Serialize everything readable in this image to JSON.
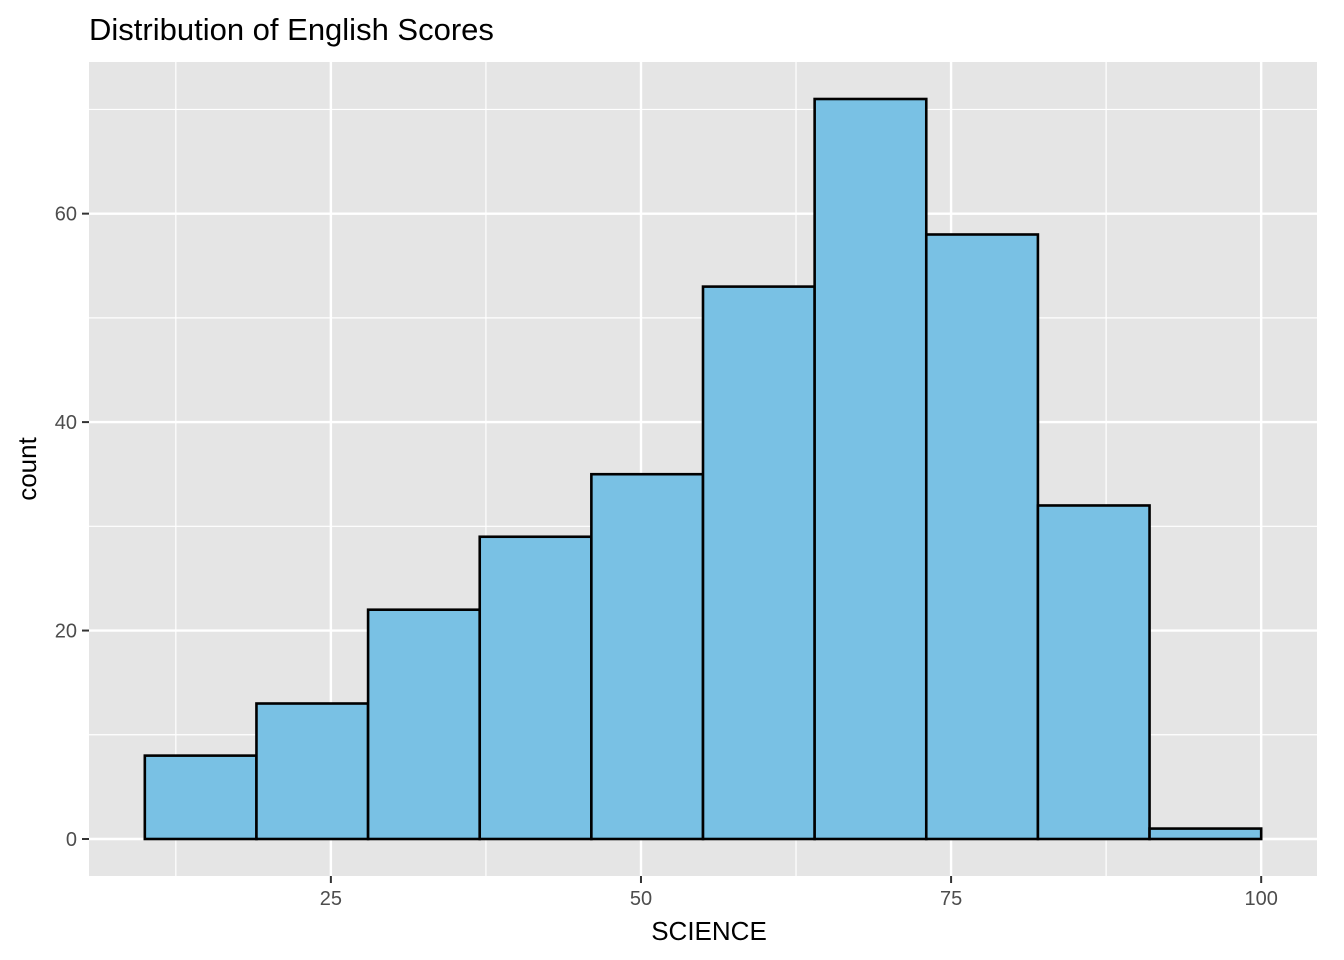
{
  "chart_data": {
    "type": "bar",
    "title": "Distribution of English Scores",
    "xlabel": "SCIENCE",
    "ylabel": "count",
    "bins": [
      {
        "start": 10,
        "end": 19,
        "count": 8
      },
      {
        "start": 19,
        "end": 28,
        "count": 13
      },
      {
        "start": 28,
        "end": 37,
        "count": 22
      },
      {
        "start": 37,
        "end": 46,
        "count": 29
      },
      {
        "start": 46,
        "end": 55,
        "count": 35
      },
      {
        "start": 55,
        "end": 64,
        "count": 53
      },
      {
        "start": 64,
        "end": 73,
        "count": 71
      },
      {
        "start": 73,
        "end": 82,
        "count": 58
      },
      {
        "start": 82,
        "end": 91,
        "count": 32
      },
      {
        "start": 91,
        "end": 100,
        "count": 1
      }
    ],
    "xlim": [
      5.5,
      104.5
    ],
    "ylim": [
      -3.55,
      74.55
    ],
    "x_ticks": [
      25,
      50,
      75,
      100
    ],
    "x_minor": [
      12.5,
      37.5,
      62.5,
      87.5
    ],
    "y_ticks": [
      0,
      20,
      40,
      60
    ],
    "y_minor": [
      10,
      30,
      50,
      70
    ],
    "grid": true,
    "colors": {
      "panel": "#e5e5e5",
      "grid": "#ffffff",
      "bar_fill": "#79c1e4",
      "bar_stroke": "#000000",
      "tick_text": "#4d4d4d"
    }
  }
}
